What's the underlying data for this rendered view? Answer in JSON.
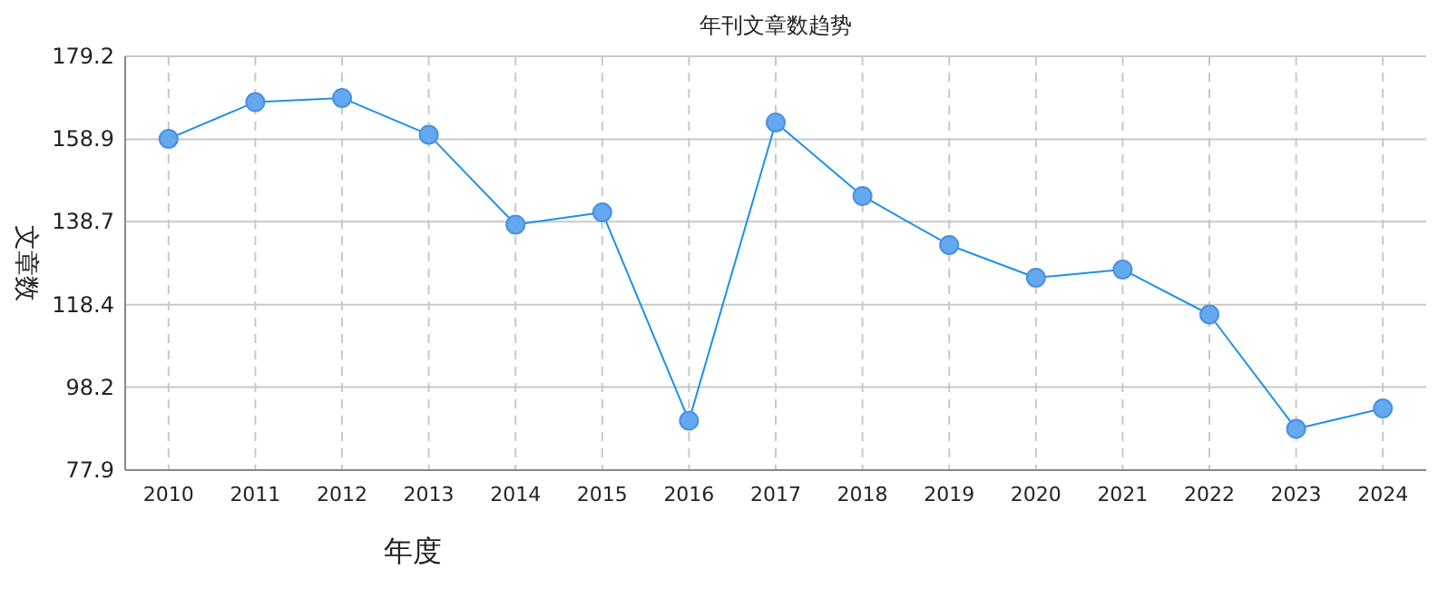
{
  "chart_data": {
    "type": "line",
    "title": "年刊文章数趋势",
    "xlabel": "年度",
    "ylabel": "文章数",
    "categories": [
      "2010",
      "2011",
      "2012",
      "2013",
      "2014",
      "2015",
      "2016",
      "2017",
      "2018",
      "2019",
      "2020",
      "2021",
      "2022",
      "2023",
      "2024"
    ],
    "series": [
      {
        "color": "#1e90e8",
        "values": [
          159,
          168,
          169,
          160,
          138,
          141,
          90,
          163,
          145,
          133,
          125,
          127,
          116,
          88,
          93
        ]
      }
    ],
    "ylim": [
      77.9,
      179.2
    ],
    "yticks": [
      77.9,
      98.2,
      118.4,
      138.7,
      158.9,
      179.2
    ],
    "grid": true,
    "marker": "circle"
  }
}
